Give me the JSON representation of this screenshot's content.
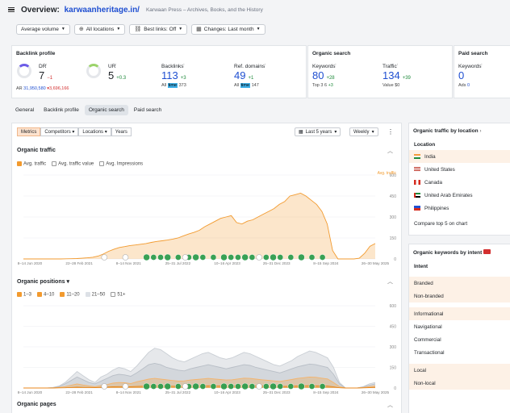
{
  "header": {
    "title_prefix": "Overview: ",
    "domain": "karwaanheritage.in/",
    "subtitle": "Karwaan Press – Archives, Books, and the History"
  },
  "filters": [
    {
      "icon": "none",
      "label": "Average volume"
    },
    {
      "icon": "globe-icon",
      "label": "All locations"
    },
    {
      "icon": "link-icon",
      "label": "Best links: Off"
    },
    {
      "icon": "calendar-icon",
      "label": "Changes: Last month"
    }
  ],
  "backlink_profile": {
    "title": "Backlink profile",
    "dr": {
      "label": "DR",
      "value": "7",
      "delta": "−1",
      "ring_fill": 7
    },
    "ar": {
      "label": "AR",
      "value": "31,950,580",
      "delta": "▾3,696,166"
    },
    "ur": {
      "label": "UR",
      "value": "5",
      "delta": "+0.3",
      "ring_fill": 5
    },
    "backlinks": {
      "label": "Backlinks",
      "value": "113",
      "delta": "+3",
      "foot_prefix": "All",
      "foot_hl": "time",
      "foot_value": "373"
    },
    "ref_domains": {
      "label": "Ref. domains",
      "value": "49",
      "delta": "+1",
      "foot_prefix": "All",
      "foot_hl": "time",
      "foot_value": "147"
    }
  },
  "organic_search": {
    "title": "Organic search",
    "keywords": {
      "label": "Keywords",
      "value": "80",
      "delta": "+28",
      "foot": "Top 3",
      "foot_value": "6",
      "foot_delta": "+3"
    },
    "traffic": {
      "label": "Traffic",
      "value": "134",
      "delta": "+39",
      "foot": "Value",
      "foot_value": "$0"
    }
  },
  "paid_search": {
    "title": "Paid search",
    "keywords": {
      "label": "Keywords",
      "value": "0",
      "foot": "Ads",
      "foot_value": "0"
    }
  },
  "tabs": [
    "General",
    "Backlink profile",
    "Organic search",
    "Paid search"
  ],
  "active_tab": 2,
  "toolbar": {
    "metrics": "Metrics",
    "competitors": "Competitors ▾",
    "locations": "Locations ▾",
    "years": "Years",
    "range": "Last 5 years",
    "interval": "Weekly",
    "more": "⋮"
  },
  "organic_traffic": {
    "title": "Organic traffic",
    "legend": [
      "Avg. traffic",
      "Avg. traffic value",
      "Avg. Impressions"
    ],
    "axis_title": "Avg. traffic"
  },
  "organic_positions": {
    "title": "Organic positions ▾",
    "legend": [
      "1–3",
      "4–10",
      "11–20",
      "21–50",
      "51+"
    ]
  },
  "organic_pages": {
    "title": "Organic pages"
  },
  "side_location": {
    "title": "Organic traffic by location",
    "sub": "Location",
    "items": [
      "India",
      "United States",
      "Canada",
      "United Arab Emirates",
      "Philippines"
    ],
    "compare": "Compare top 5 on chart"
  },
  "side_intent": {
    "title": "Organic keywords by intent",
    "sub": "Intent",
    "items": [
      "Branded",
      "Non-branded",
      "Informational",
      "Navigational",
      "Commercial",
      "Transactional",
      "Local",
      "Non-local"
    ]
  },
  "chart_data": [
    {
      "type": "area",
      "title": "Organic traffic",
      "series": [
        {
          "name": "Avg. traffic",
          "values": [
            0,
            0,
            0,
            0,
            0,
            0,
            0,
            0,
            1,
            2,
            3,
            5,
            8,
            12,
            20,
            35,
            55,
            70,
            82,
            88,
            96,
            100,
            105,
            110,
            118,
            125,
            130,
            135,
            142,
            150,
            165,
            178,
            190,
            205,
            230,
            250,
            270,
            290,
            300,
            310,
            260,
            250,
            270,
            280,
            300,
            320,
            340,
            360,
            390,
            410,
            450,
            460,
            470,
            450,
            420,
            390,
            340,
            250,
            60,
            0,
            0,
            0,
            0,
            5,
            40,
            90,
            110
          ]
        }
      ],
      "x_ticks": [
        "8–14 Jun 2020",
        "22–28 Feb 2021",
        "8–14 Nov 2021",
        "25–31 Jul 2022",
        "10–16 Apr 2023",
        "25–31 Dec 2023",
        "8–15 Sep 2024",
        "26–30 May 2025"
      ],
      "y_ticks": [
        "600",
        "450",
        "300",
        "150",
        "0"
      ],
      "ylim": [
        0,
        600
      ]
    },
    {
      "type": "area",
      "title": "Organic positions",
      "x_ticks": [
        "8–14 Jun 2020",
        "22–28 Feb 2021",
        "8–14 Nov 2021",
        "25–31 Jul 2022",
        "10–16 Apr 2023",
        "25–31 Dec 2023",
        "8–15 Sep 2024",
        "26–30 May 2025"
      ],
      "y_ticks": [
        "600",
        "450",
        "300",
        "150",
        "0"
      ],
      "ylim": [
        0,
        600
      ],
      "series": [
        {
          "name": "51+",
          "values": [
            0,
            0,
            0,
            0,
            0,
            5,
            15,
            40,
            80,
            120,
            90,
            60,
            40,
            80,
            100,
            130,
            150,
            140,
            120,
            160,
            210,
            260,
            290,
            280,
            250,
            220,
            200,
            190,
            210,
            230,
            250,
            260,
            240,
            220,
            210,
            220,
            240,
            260,
            250,
            230,
            210,
            190,
            170,
            160,
            180,
            200,
            230,
            250,
            270,
            260,
            240,
            220,
            150,
            40,
            0,
            0,
            0,
            10,
            30,
            40
          ]
        },
        {
          "name": "21–50",
          "values": [
            0,
            0,
            0,
            0,
            0,
            2,
            10,
            30,
            55,
            80,
            60,
            40,
            30,
            50,
            70,
            90,
            100,
            95,
            85,
            110,
            140,
            170,
            180,
            170,
            150,
            140,
            130,
            125,
            140,
            150,
            160,
            170,
            160,
            150,
            140,
            150,
            160,
            170,
            165,
            150,
            140,
            130,
            120,
            110,
            125,
            140,
            155,
            165,
            175,
            170,
            160,
            150,
            100,
            30,
            0,
            0,
            0,
            8,
            20,
            30
          ]
        },
        {
          "name": "11–20",
          "values": [
            0,
            0,
            0,
            0,
            0,
            1,
            4,
            10,
            20,
            30,
            22,
            15,
            10,
            18,
            25,
            35,
            40,
            38,
            32,
            45,
            55,
            65,
            70,
            65,
            60,
            55,
            50,
            52,
            58,
            62,
            66,
            70,
            66,
            62,
            58,
            60,
            66,
            72,
            70,
            65,
            60,
            56,
            52,
            48,
            55,
            62,
            70,
            75,
            80,
            78,
            72,
            66,
            40,
            10,
            0,
            0,
            0,
            3,
            10,
            15
          ]
        },
        {
          "name": "4–10",
          "values": [
            0,
            0,
            0,
            0,
            0,
            0,
            1,
            2,
            4,
            6,
            5,
            4,
            3,
            5,
            7,
            9,
            10,
            10,
            9,
            11,
            13,
            15,
            16,
            15,
            14,
            13,
            12,
            12,
            13,
            14,
            15,
            16,
            15,
            14,
            13,
            14,
            15,
            16,
            16,
            15,
            14,
            13,
            12,
            11,
            12,
            13,
            15,
            16,
            17,
            16,
            15,
            14,
            8,
            2,
            0,
            0,
            0,
            1,
            3,
            5
          ]
        }
      ]
    }
  ],
  "colors": {
    "accent": "#f29a2e",
    "brand": "#1f4fd1",
    "up": "#1f8a3b",
    "down": "#d32f2f",
    "marker": "#3aa655"
  }
}
